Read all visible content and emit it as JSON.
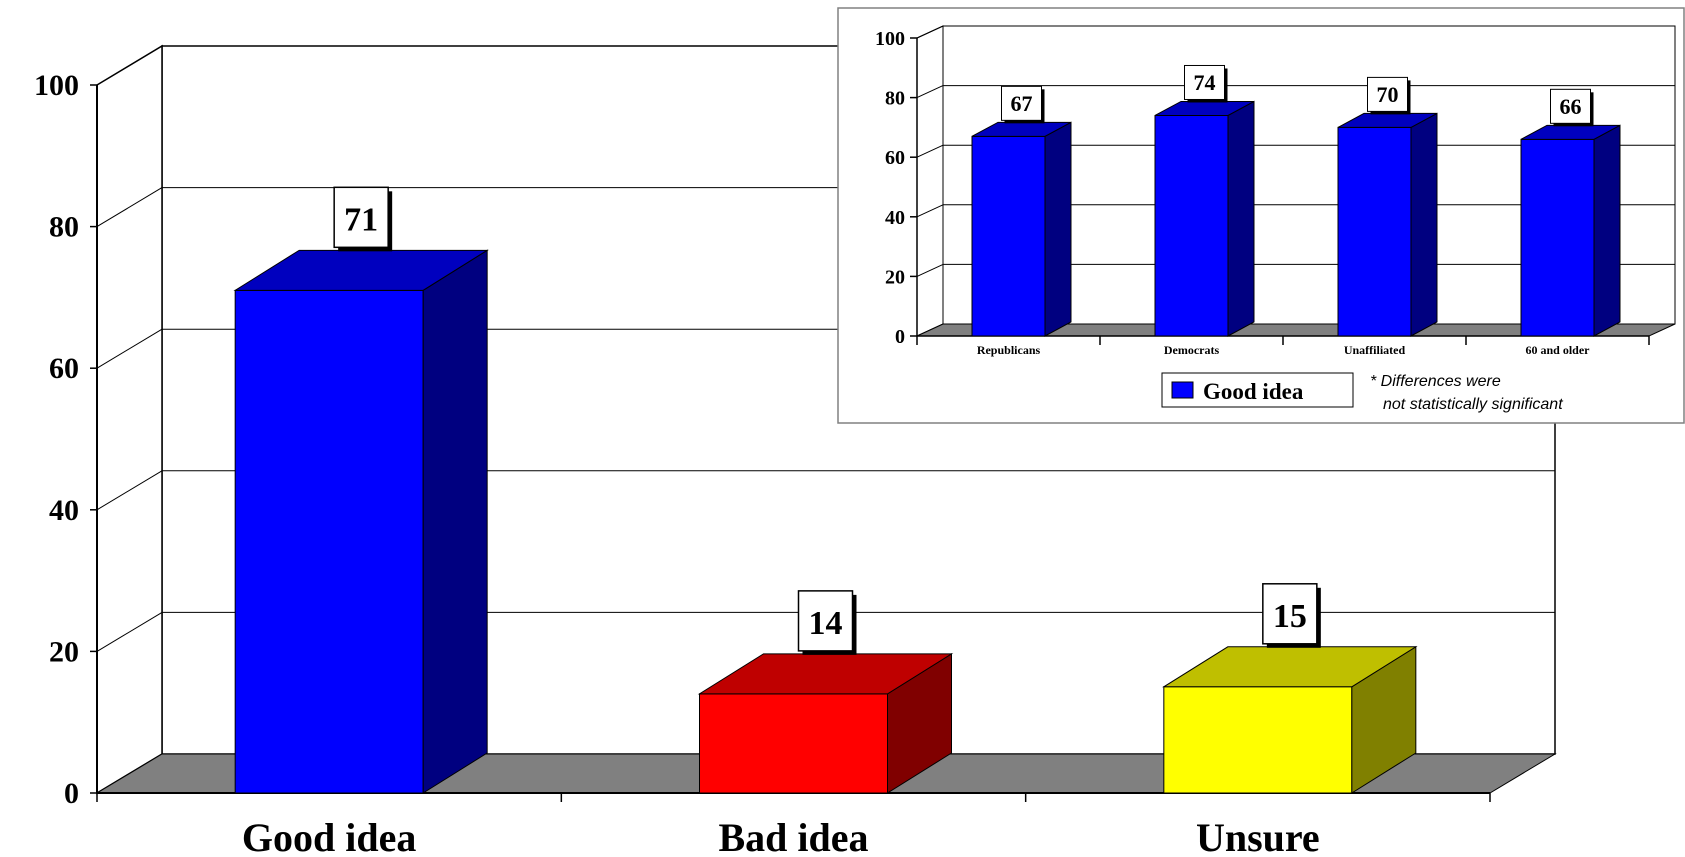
{
  "chart_data": [
    {
      "type": "bar",
      "title": "",
      "categories": [
        "Good idea",
        "Bad idea",
        "Unsure"
      ],
      "values": [
        71,
        14,
        15
      ],
      "data_labels": [
        "71",
        "14",
        "15"
      ],
      "colors": [
        "#0000ff",
        "#ff0000",
        "#ffff00"
      ],
      "ylim": [
        0,
        100
      ],
      "yticks": [
        "0",
        "20",
        "40",
        "60",
        "80",
        "100"
      ],
      "grid": true,
      "style": "3d"
    },
    {
      "type": "bar",
      "title": "",
      "categories": [
        "Republicans",
        "Democrats",
        "Unaffiliated",
        "60 and older"
      ],
      "series": [
        {
          "name": "Good idea",
          "values": [
            67,
            74,
            70,
            66
          ]
        }
      ],
      "data_labels": [
        "67",
        "74",
        "70",
        "66"
      ],
      "color": "#0000ff",
      "ylim": [
        0,
        100
      ],
      "yticks": [
        "0",
        "20",
        "40",
        "60",
        "80",
        "100"
      ],
      "grid": true,
      "legend": "bottom",
      "annotation": [
        "* Differences were",
        "not statistically significant"
      ],
      "style": "3d"
    }
  ]
}
